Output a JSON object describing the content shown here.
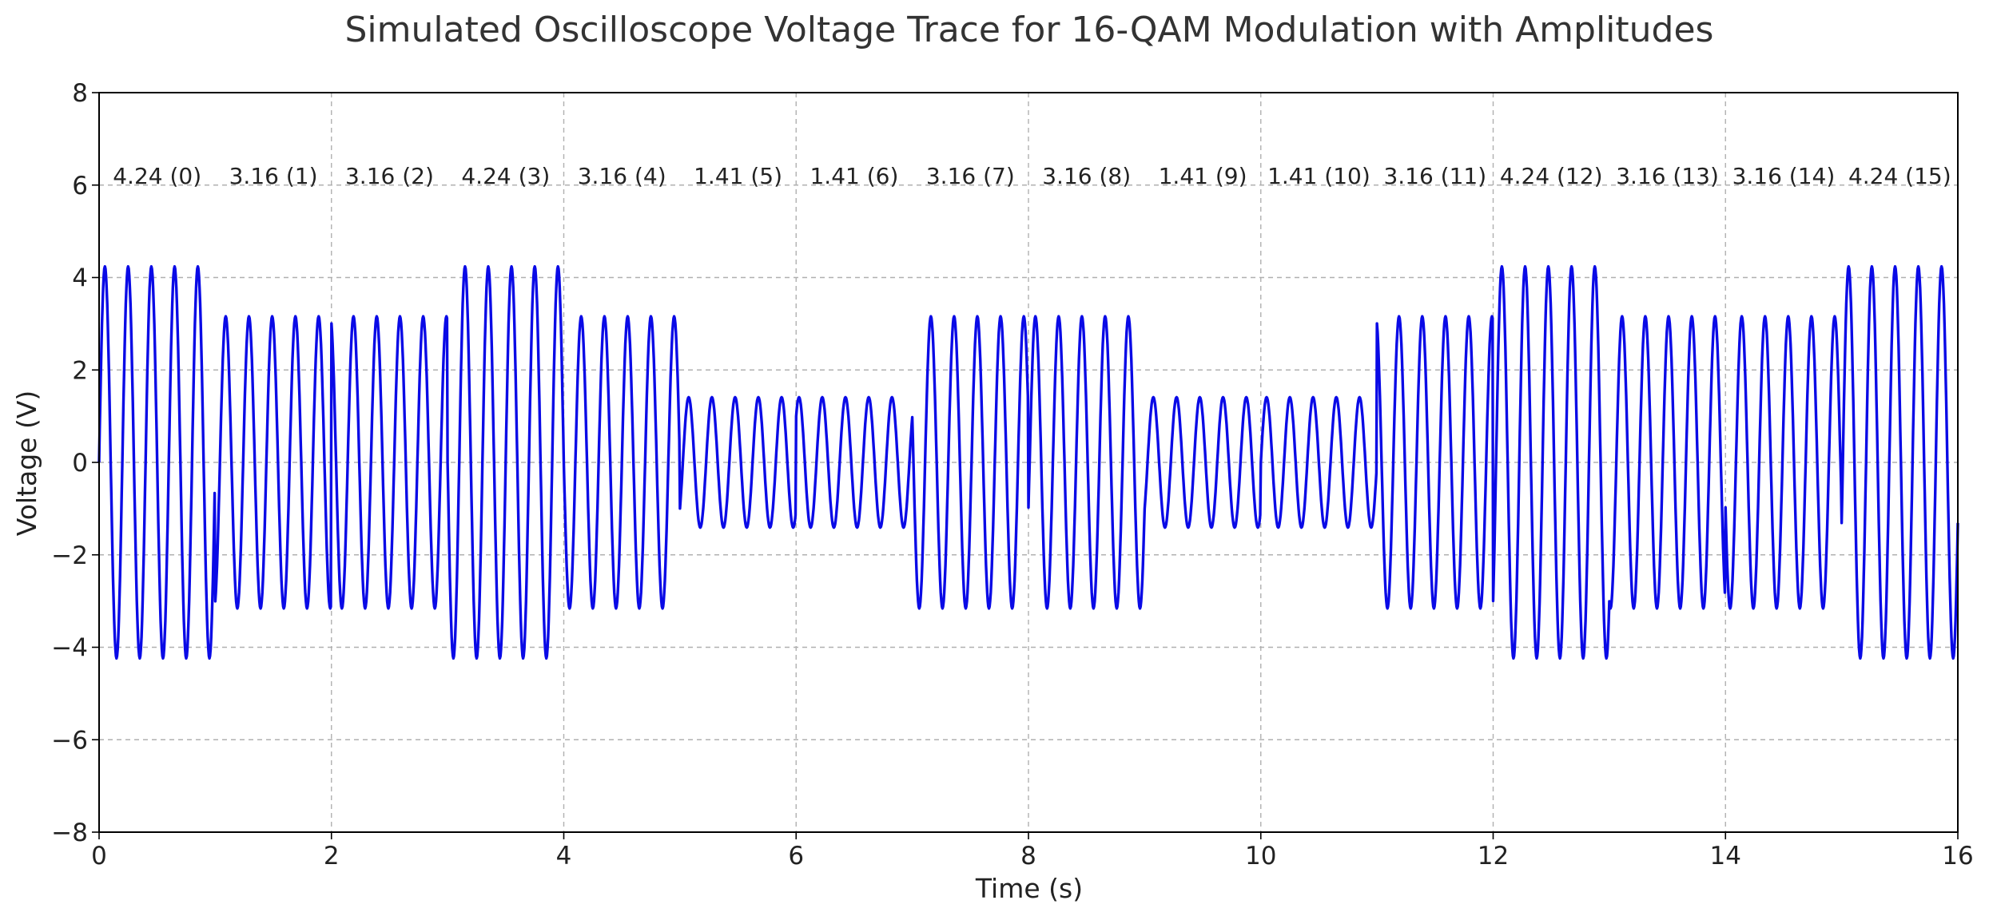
{
  "chart_data": {
    "type": "line",
    "title": "Simulated Oscilloscope Voltage Trace for 16-QAM Modulation with Amplitudes",
    "xlabel": "Time (s)",
    "ylabel": "Voltage (V)",
    "xlim": [
      0,
      16
    ],
    "ylim": [
      -8,
      8
    ],
    "xticks": [
      "0",
      "2",
      "4",
      "6",
      "8",
      "10",
      "12",
      "14",
      "16"
    ],
    "yticks": [
      "−8",
      "−6",
      "−4",
      "−2",
      "0",
      "2",
      "4",
      "6",
      "8"
    ],
    "grid": true,
    "line_color": "#0a0ae6",
    "carrier_frequency_hz": 5,
    "symbols": [
      {
        "index": 0,
        "amplitude": 4.24,
        "phase_deg": 270,
        "label": "4.24 (0)"
      },
      {
        "index": 1,
        "amplitude": 3.16,
        "phase_deg": 198,
        "label": "3.16 (1)"
      },
      {
        "index": 2,
        "amplitude": 3.16,
        "phase_deg": 18,
        "label": "3.16 (2)"
      },
      {
        "index": 3,
        "amplitude": 4.24,
        "phase_deg": 90,
        "label": "4.24 (3)"
      },
      {
        "index": 4,
        "amplitude": 3.16,
        "phase_deg": 90,
        "label": "3.16 (4)"
      },
      {
        "index": 5,
        "amplitude": 1.41,
        "phase_deg": 225,
        "label": "1.41 (5)"
      },
      {
        "index": 6,
        "amplitude": 1.41,
        "phase_deg": 315,
        "label": "1.41 (6)"
      },
      {
        "index": 7,
        "amplitude": 3.16,
        "phase_deg": 72,
        "label": "3.16 (7)"
      },
      {
        "index": 8,
        "amplitude": 3.16,
        "phase_deg": 252,
        "label": "3.16 (8)"
      },
      {
        "index": 9,
        "amplitude": 1.41,
        "phase_deg": 225,
        "label": "1.41 (9)"
      },
      {
        "index": 10,
        "amplitude": 1.41,
        "phase_deg": 270,
        "label": "1.41 (10)"
      },
      {
        "index": 11,
        "amplitude": 3.16,
        "phase_deg": 18,
        "label": "3.16 (11)"
      },
      {
        "index": 12,
        "amplitude": 4.24,
        "phase_deg": 225,
        "label": "4.24 (12)"
      },
      {
        "index": 13,
        "amplitude": 3.16,
        "phase_deg": 162,
        "label": "3.16 (13)"
      },
      {
        "index": 14,
        "amplitude": 3.16,
        "phase_deg": 108,
        "label": "3.16 (14)"
      },
      {
        "index": 15,
        "amplitude": 4.24,
        "phase_deg": 252,
        "label": "4.24 (15)"
      }
    ],
    "annotation_y": 6.2
  }
}
